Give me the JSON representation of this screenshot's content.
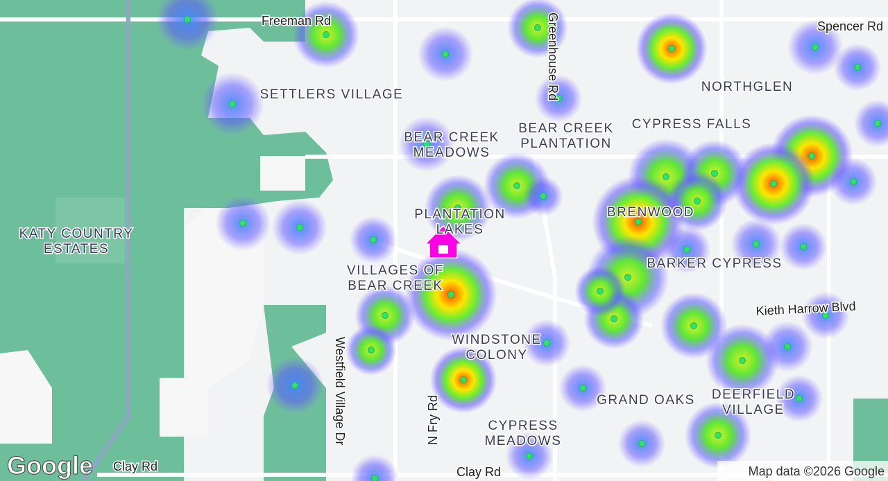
{
  "map": {
    "place_labels": [
      {
        "lines": [
          "SETTLERS VILLAGE"
        ]
      },
      {
        "lines": [
          "NORTHGLEN"
        ]
      },
      {
        "lines": [
          "BEAR CREEK",
          "MEADOWS"
        ]
      },
      {
        "lines": [
          "BEAR CREEK",
          "PLANTATION"
        ]
      },
      {
        "lines": [
          "CYPRESS FALLS"
        ]
      },
      {
        "lines": [
          "KATY COUNTRY",
          "ESTATES"
        ]
      },
      {
        "lines": [
          "PLANTATION",
          "LAKES"
        ]
      },
      {
        "lines": [
          "BRENWOOD"
        ]
      },
      {
        "lines": [
          "BARKER CYPRESS"
        ]
      },
      {
        "lines": [
          "VILLAGES OF",
          "BEAR CREEK"
        ]
      },
      {
        "lines": [
          "WINDSTONE",
          "COLONY"
        ]
      },
      {
        "lines": [
          "GRAND OAKS"
        ]
      },
      {
        "lines": [
          "DEERFIELD",
          "VILLAGE"
        ]
      },
      {
        "lines": [
          "CYPRESS",
          "MEADOWS"
        ]
      }
    ],
    "road_labels": [
      "Freeman Rd",
      "Spencer Rd",
      "Greenhouse Rd",
      "Kieth Harrow Blvd",
      "Westfield Village Dr",
      "N Fry Rd",
      "Clay Rd",
      "Clay Rd"
    ],
    "logo": "Google",
    "attribution": "Map data ©2026 Google"
  }
}
